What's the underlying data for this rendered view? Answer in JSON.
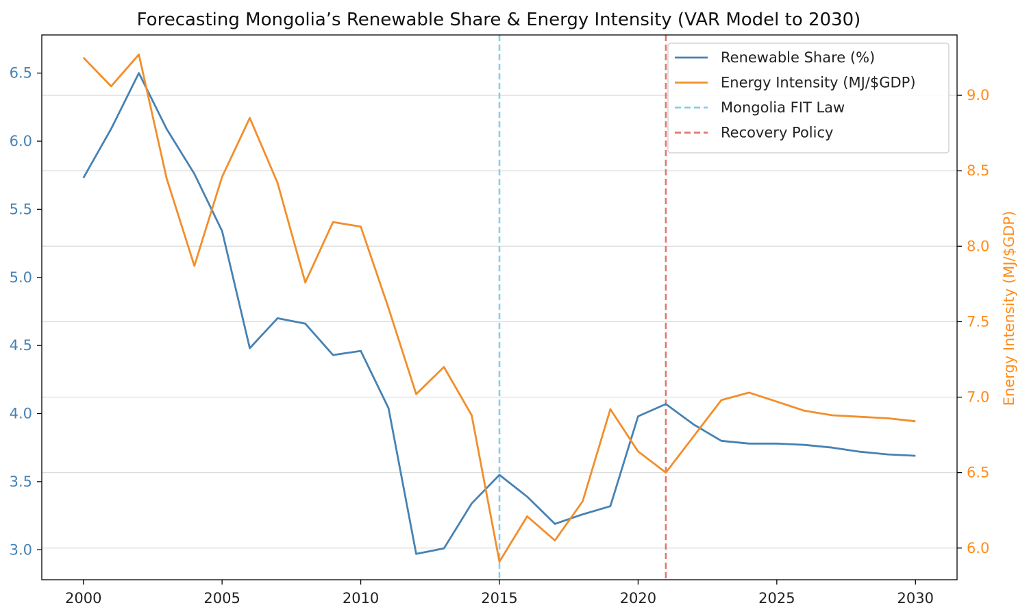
{
  "chart_data": {
    "type": "line",
    "title": "Forecasting Mongolia’s Renewable Share & Energy Intensity (VAR Model to 2030)",
    "xlabel": "",
    "x": [
      2000,
      2001,
      2002,
      2003,
      2004,
      2005,
      2006,
      2007,
      2008,
      2009,
      2010,
      2011,
      2012,
      2013,
      2014,
      2015,
      2016,
      2017,
      2018,
      2019,
      2020,
      2021,
      2022,
      2023,
      2024,
      2025,
      2026,
      2027,
      2028,
      2029,
      2030
    ],
    "xlim": [
      1998.5,
      2031.5
    ],
    "x_ticks": [
      2000,
      2005,
      2010,
      2015,
      2020,
      2025,
      2030
    ],
    "y_left": {
      "label": "",
      "lim": [
        2.78,
        6.78
      ],
      "ticks": [
        "3.0",
        "3.5",
        "4.0",
        "4.5",
        "5.0",
        "5.5",
        "6.0",
        "6.5"
      ],
      "color": "#4682b4"
    },
    "y_right": {
      "label": "Energy Intensity (MJ/$GDP)",
      "lim": [
        5.79,
        9.4
      ],
      "ticks": [
        "6.0",
        "6.5",
        "7.0",
        "7.5",
        "8.0",
        "8.5",
        "9.0"
      ],
      "color": "#ff8c1a"
    },
    "grid": "horizontal lines at right-axis ticks",
    "legend_position": "top-right",
    "series": [
      {
        "name": "Renewable Share (%)",
        "axis": "left",
        "color": "#4682b4",
        "style": "solid",
        "values": [
          5.73,
          6.09,
          6.5,
          6.09,
          5.76,
          5.34,
          4.48,
          4.7,
          4.66,
          4.43,
          4.46,
          4.04,
          2.97,
          3.01,
          3.34,
          3.55,
          3.39,
          3.19,
          3.26,
          3.32,
          3.98,
          4.07,
          3.92,
          3.8,
          3.78,
          3.78,
          3.77,
          3.75,
          3.72,
          3.7,
          3.69
        ]
      },
      {
        "name": "Energy Intensity (MJ/$GDP)",
        "axis": "right",
        "color": "#f28e2b",
        "style": "solid",
        "values": [
          9.25,
          9.06,
          9.27,
          8.45,
          7.87,
          8.46,
          8.85,
          8.42,
          7.76,
          8.16,
          8.13,
          7.59,
          7.02,
          7.2,
          6.88,
          5.91,
          6.21,
          6.05,
          6.31,
          6.92,
          6.64,
          6.5,
          6.74,
          6.98,
          7.03,
          6.97,
          6.91,
          6.88,
          6.87,
          6.86,
          6.84
        ]
      }
    ],
    "vlines": [
      {
        "name": "Mongolia FIT Law",
        "x": 2015,
        "color": "#87ceeb",
        "style": "dashed"
      },
      {
        "name": "Recovery Policy",
        "x": 2021,
        "color": "#e57373",
        "style": "dashed"
      }
    ]
  }
}
